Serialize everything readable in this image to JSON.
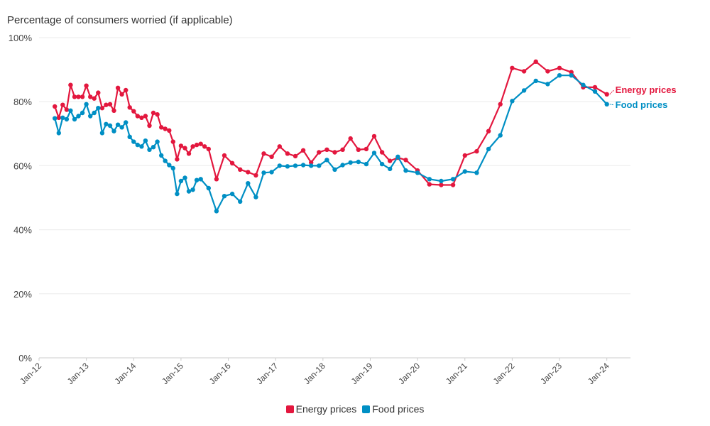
{
  "chart_data": {
    "type": "line",
    "title": "Percentage of consumers worried (if applicable)",
    "xlabel": "",
    "ylabel": "",
    "ylim": [
      0,
      100
    ],
    "yticks": [
      0,
      20,
      40,
      60,
      80,
      100
    ],
    "ytick_labels": [
      "0%",
      "20%",
      "40%",
      "60%",
      "80%",
      "100%"
    ],
    "xlim": [
      "2012-01",
      "2024-07"
    ],
    "xtick_labels": [
      "Jan-12",
      "Jan-13",
      "Jan-14",
      "Jan-15",
      "Jan-16",
      "Jan-17",
      "Jan-18",
      "Jan-19",
      "Jan-20",
      "Jan-21",
      "Jan-22",
      "Jan-23",
      "Jan-24"
    ],
    "grid": "horizontal",
    "legend": "bottom-center",
    "series": [
      {
        "name": "Energy prices",
        "color": "#e3173e",
        "end_label": "Energy prices",
        "points": [
          [
            "2012-05",
            78.5
          ],
          [
            "2012-06",
            75
          ],
          [
            "2012-07",
            79
          ],
          [
            "2012-08",
            77.5
          ],
          [
            "2012-09",
            85.2
          ],
          [
            "2012-10",
            81.5
          ],
          [
            "2012-11",
            81.5
          ],
          [
            "2012-12",
            81.5
          ],
          [
            "2013-01",
            85
          ],
          [
            "2013-02",
            81.5
          ],
          [
            "2013-03",
            81
          ],
          [
            "2013-04",
            82.8
          ],
          [
            "2013-05",
            78
          ],
          [
            "2013-06",
            79
          ],
          [
            "2013-07",
            79.2
          ],
          [
            "2013-08",
            77.2
          ],
          [
            "2013-09",
            84.3
          ],
          [
            "2013-10",
            82.3
          ],
          [
            "2013-11",
            83.6
          ],
          [
            "2013-12",
            78.2
          ],
          [
            "2014-01",
            77
          ],
          [
            "2014-02",
            75.5
          ],
          [
            "2014-03",
            75
          ],
          [
            "2014-04",
            75.5
          ],
          [
            "2014-05",
            72.5
          ],
          [
            "2014-06",
            76.5
          ],
          [
            "2014-07",
            76
          ],
          [
            "2014-08",
            72
          ],
          [
            "2014-09",
            71.5
          ],
          [
            "2014-10",
            71
          ],
          [
            "2014-11",
            67.5
          ],
          [
            "2014-12",
            62
          ],
          [
            "2015-01",
            66.2
          ],
          [
            "2015-02",
            65.5
          ],
          [
            "2015-03",
            63.8
          ],
          [
            "2015-04",
            66
          ],
          [
            "2015-05",
            66.5
          ],
          [
            "2015-06",
            66.8
          ],
          [
            "2015-07",
            66
          ],
          [
            "2015-08",
            65.2
          ],
          [
            "2015-10",
            55.8
          ],
          [
            "2015-12",
            63.2
          ],
          [
            "2016-02",
            60.8
          ],
          [
            "2016-04",
            58.8
          ],
          [
            "2016-06",
            58
          ],
          [
            "2016-08",
            57
          ],
          [
            "2016-10",
            63.8
          ],
          [
            "2016-12",
            62.8
          ],
          [
            "2017-02",
            66
          ],
          [
            "2017-04",
            63.8
          ],
          [
            "2017-06",
            63
          ],
          [
            "2017-08",
            64.8
          ],
          [
            "2017-10",
            61
          ],
          [
            "2017-12",
            64.2
          ],
          [
            "2018-02",
            65
          ],
          [
            "2018-04",
            64.2
          ],
          [
            "2018-06",
            65
          ],
          [
            "2018-08",
            68.5
          ],
          [
            "2018-10",
            65
          ],
          [
            "2018-12",
            65.2
          ],
          [
            "2019-02",
            69.2
          ],
          [
            "2019-04",
            64.2
          ],
          [
            "2019-06",
            61.5
          ],
          [
            "2019-08",
            62.5
          ],
          [
            "2019-10",
            61.8
          ],
          [
            "2020-01",
            58.5
          ],
          [
            "2020-04",
            54.2
          ],
          [
            "2020-07",
            54
          ],
          [
            "2020-10",
            54
          ],
          [
            "2021-01",
            63.2
          ],
          [
            "2021-04",
            64.5
          ],
          [
            "2021-07",
            70.8
          ],
          [
            "2021-10",
            79.2
          ],
          [
            "2022-01",
            90.5
          ],
          [
            "2022-04",
            89.5
          ],
          [
            "2022-07",
            92.5
          ],
          [
            "2022-10",
            89.5
          ],
          [
            "2023-01",
            90.5
          ],
          [
            "2023-04",
            89.2
          ],
          [
            "2023-07",
            84.5
          ],
          [
            "2023-10",
            84.5
          ],
          [
            "2024-01",
            82.3
          ]
        ]
      },
      {
        "name": "Food prices",
        "color": "#008fc4",
        "end_label": "Food prices",
        "points": [
          [
            "2012-05",
            74.8
          ],
          [
            "2012-06",
            70.2
          ],
          [
            "2012-07",
            75
          ],
          [
            "2012-08",
            74.5
          ],
          [
            "2012-09",
            77.2
          ],
          [
            "2012-10",
            74.5
          ],
          [
            "2012-11",
            75.5
          ],
          [
            "2012-12",
            76.5
          ],
          [
            "2013-01",
            79.2
          ],
          [
            "2013-02",
            75.5
          ],
          [
            "2013-03",
            76.5
          ],
          [
            "2013-04",
            78
          ],
          [
            "2013-05",
            70.2
          ],
          [
            "2013-06",
            73
          ],
          [
            "2013-07",
            72.5
          ],
          [
            "2013-08",
            70.8
          ],
          [
            "2013-09",
            72.8
          ],
          [
            "2013-10",
            72
          ],
          [
            "2013-11",
            73.5
          ],
          [
            "2013-12",
            69
          ],
          [
            "2014-01",
            67.5
          ],
          [
            "2014-02",
            66.5
          ],
          [
            "2014-03",
            66
          ],
          [
            "2014-04",
            67.8
          ],
          [
            "2014-05",
            65
          ],
          [
            "2014-06",
            65.8
          ],
          [
            "2014-07",
            67.5
          ],
          [
            "2014-08",
            63.2
          ],
          [
            "2014-09",
            61.5
          ],
          [
            "2014-10",
            60.2
          ],
          [
            "2014-11",
            59.2
          ],
          [
            "2014-12",
            51.2
          ],
          [
            "2015-01",
            55.2
          ],
          [
            "2015-02",
            56.2
          ],
          [
            "2015-03",
            52
          ],
          [
            "2015-04",
            52.5
          ],
          [
            "2015-05",
            55.5
          ],
          [
            "2015-06",
            55.8
          ],
          [
            "2015-08",
            53
          ],
          [
            "2015-10",
            45.8
          ],
          [
            "2015-12",
            50.5
          ],
          [
            "2016-02",
            51.2
          ],
          [
            "2016-04",
            48.8
          ],
          [
            "2016-06",
            54.5
          ],
          [
            "2016-08",
            50.2
          ],
          [
            "2016-10",
            57.8
          ],
          [
            "2016-12",
            58
          ],
          [
            "2017-02",
            60
          ],
          [
            "2017-04",
            59.8
          ],
          [
            "2017-06",
            60
          ],
          [
            "2017-08",
            60.2
          ],
          [
            "2017-10",
            60
          ],
          [
            "2017-12",
            60
          ],
          [
            "2018-02",
            61.8
          ],
          [
            "2018-04",
            58.8
          ],
          [
            "2018-06",
            60.2
          ],
          [
            "2018-08",
            61
          ],
          [
            "2018-10",
            61.2
          ],
          [
            "2018-12",
            60.5
          ],
          [
            "2019-02",
            64
          ],
          [
            "2019-04",
            60.5
          ],
          [
            "2019-06",
            59
          ],
          [
            "2019-08",
            62.8
          ],
          [
            "2019-10",
            58.5
          ],
          [
            "2020-01",
            57.8
          ],
          [
            "2020-04",
            55.8
          ],
          [
            "2020-07",
            55.2
          ],
          [
            "2020-10",
            55.8
          ],
          [
            "2021-01",
            58.2
          ],
          [
            "2021-04",
            57.8
          ],
          [
            "2021-07",
            65.2
          ],
          [
            "2021-10",
            69.5
          ],
          [
            "2022-01",
            80.2
          ],
          [
            "2022-04",
            83.5
          ],
          [
            "2022-07",
            86.5
          ],
          [
            "2022-10",
            85.5
          ],
          [
            "2023-01",
            88.2
          ],
          [
            "2023-04",
            88.2
          ],
          [
            "2023-07",
            85.2
          ],
          [
            "2023-10",
            83.2
          ],
          [
            "2024-01",
            79.2
          ]
        ]
      }
    ]
  }
}
